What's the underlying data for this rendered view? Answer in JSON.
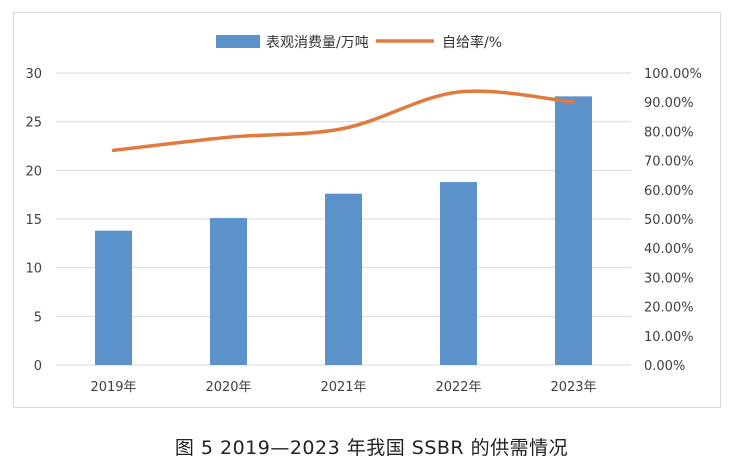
{
  "chart_data": {
    "type": "bar",
    "categories": [
      "2019年",
      "2020年",
      "2021年",
      "2022年",
      "2023年"
    ],
    "series": [
      {
        "name": "表观消费量/万吨",
        "type": "bar",
        "axis": "left",
        "values": [
          13.8,
          15.1,
          17.6,
          18.8,
          27.6
        ],
        "color": "#5b92c9"
      },
      {
        "name": "自给率/%",
        "type": "line",
        "axis": "right",
        "values": [
          73.5,
          78.0,
          81.0,
          93.5,
          90.0
        ],
        "color": "#e07b3e"
      }
    ],
    "y_left": {
      "min": 0,
      "max": 30,
      "ticks": [
        "0",
        "5",
        "10",
        "15",
        "20",
        "25",
        "30"
      ]
    },
    "y_right": {
      "min": 0,
      "max": 100,
      "ticks": [
        "0.00%",
        "10.00%",
        "20.00%",
        "30.00%",
        "40.00%",
        "50.00%",
        "60.00%",
        "70.00%",
        "80.00%",
        "90.00%",
        "100.00%"
      ]
    },
    "grid": true,
    "legend_position": "top"
  },
  "caption": "图 5  2019—2023 年我国 SSBR 的供需情况"
}
